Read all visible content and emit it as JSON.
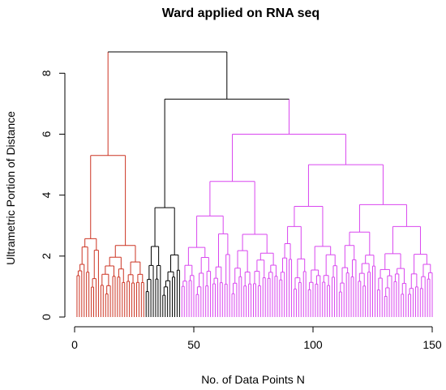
{
  "chart_data": {
    "type": "dendrogram",
    "title": "Ward applied on RNA seq",
    "xlabel": "No. of Data Points N",
    "ylabel": "Ultrametric Portion of Distance",
    "xlim": [
      0,
      150
    ],
    "ylim": [
      0,
      8.7
    ],
    "x_ticks": [
      0,
      50,
      100,
      150
    ],
    "y_ticks": [
      0,
      2,
      4,
      6,
      8
    ],
    "leaf_count": 150,
    "clusters": [
      {
        "color": "#cc3322",
        "leaves": [
          1,
          29
        ]
      },
      {
        "color": "#000000",
        "leaves": [
          30,
          44
        ]
      },
      {
        "color": "#d946ef",
        "leaves": [
          45,
          150
        ]
      }
    ],
    "major_merges": [
      {
        "left": [
          1,
          10
        ],
        "right": [
          11,
          29
        ],
        "height": 5.3
      },
      {
        "left": [
          1,
          29
        ],
        "right": [
          30,
          150
        ],
        "height": 8.7
      },
      {
        "left": [
          30,
          44
        ],
        "right": [
          45,
          150
        ],
        "height": 7.15
      },
      {
        "left": [
          45,
          85
        ],
        "right": [
          86,
          150
        ],
        "height": 6.0
      },
      {
        "left": [
          45,
          65
        ],
        "right": [
          66,
          85
        ],
        "height": 4.45
      },
      {
        "left": [
          86,
          110
        ],
        "right": [
          111,
          150
        ],
        "height": 5.0
      }
    ],
    "colors": {
      "red": "#cc3322",
      "black": "#000000",
      "magenta": "#d946ef"
    }
  }
}
